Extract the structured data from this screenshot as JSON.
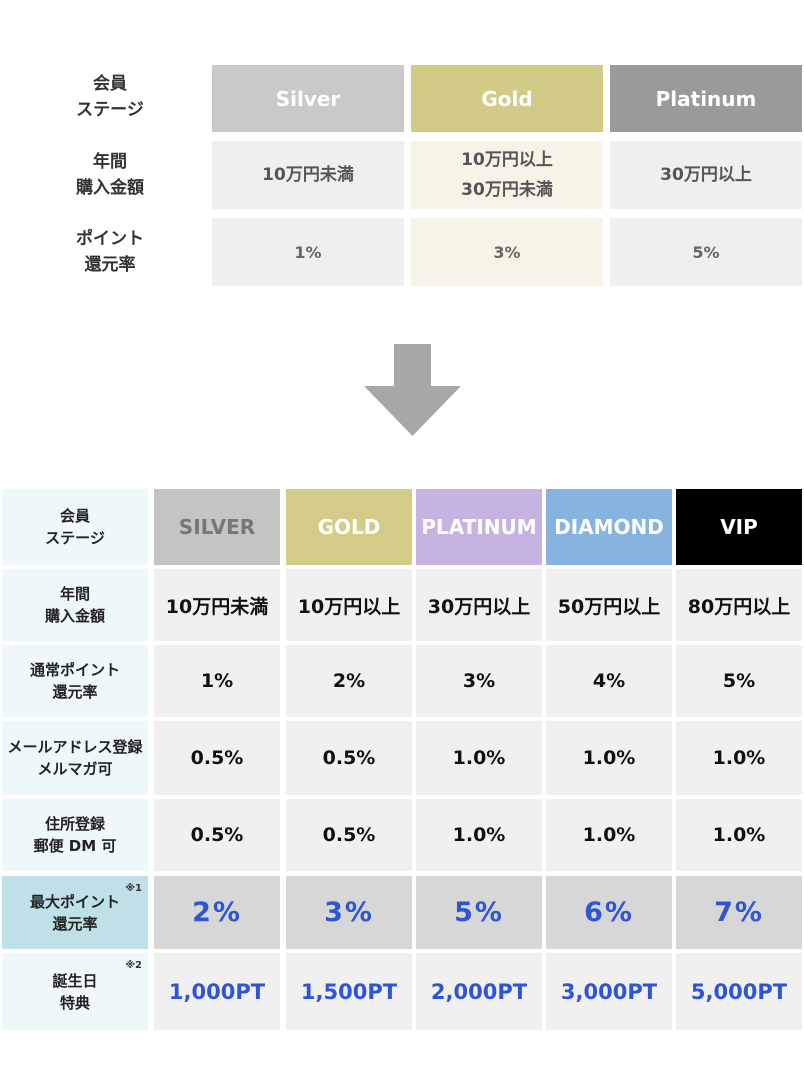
{
  "old_table": {
    "row_labels": [
      "会員\nステージ",
      "年間\n購入金額",
      "ポイント\n還元率"
    ],
    "stages": [
      {
        "name": "Silver",
        "color": "#c9c9c9"
      },
      {
        "name": "Gold",
        "color": "#d2cb86"
      },
      {
        "name": "Platinum",
        "color": "#9a9a9a"
      }
    ],
    "purchase": [
      "10万円未満",
      "10万円以上\n30万円未満",
      "30万円以上"
    ],
    "point_rate": [
      "1%",
      "3%",
      "5%"
    ]
  },
  "arrow": {
    "icon": "down-arrow-icon",
    "color": "#a7a7a7"
  },
  "new_table": {
    "row_labels": [
      "会員\nステージ",
      "年間\n購入金額",
      "通常ポイント\n還元率",
      "メールアドレス登録\nメルマガ可",
      "住所登録\n郵便 DM 可",
      "最大ポイント\n還元率",
      "誕生日\n特典"
    ],
    "notes": {
      "max_rate": "※1",
      "birthday": "※2"
    },
    "stages": [
      {
        "name": "SILVER",
        "color": "#c4c4c4",
        "text_color": "#777777"
      },
      {
        "name": "GOLD",
        "color": "#d3cc86",
        "text_color": "#ffffff"
      },
      {
        "name": "PLATINUM",
        "color": "#c6b3e2",
        "text_color": "#ffffff"
      },
      {
        "name": "DIAMOND",
        "color": "#86b3e0",
        "text_color": "#ffffff"
      },
      {
        "name": "VIP",
        "color": "#000000",
        "text_color": "#ffffff"
      }
    ],
    "purchase": [
      "10万円未満",
      "10万円以上",
      "30万円以上",
      "50万円以上",
      "80万円以上"
    ],
    "normal_rate": [
      "1%",
      "2%",
      "3%",
      "4%",
      "5%"
    ],
    "email_rate": [
      "0.5%",
      "0.5%",
      "1.0%",
      "1.0%",
      "1.0%"
    ],
    "address_rate": [
      "0.5%",
      "0.5%",
      "1.0%",
      "1.0%",
      "1.0%"
    ],
    "max_rate": [
      "2%",
      "3%",
      "5%",
      "6%",
      "7%"
    ],
    "birthday": [
      "1,000PT",
      "1,500PT",
      "2,000PT",
      "3,000PT",
      "5,000PT"
    ]
  }
}
